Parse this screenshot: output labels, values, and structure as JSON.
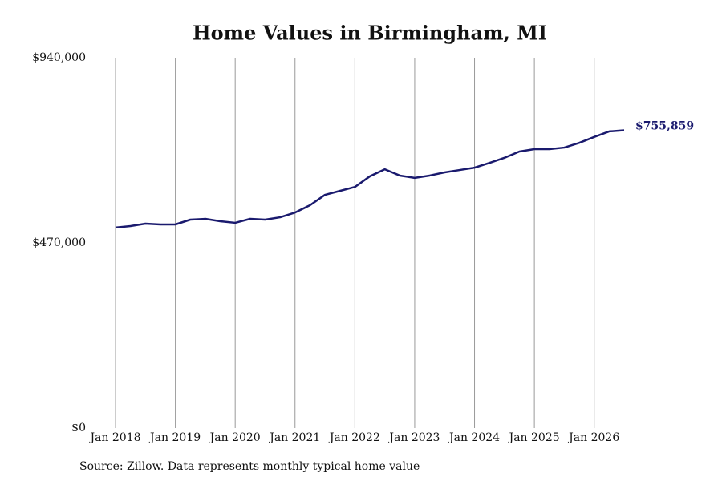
{
  "chart_data": {
    "type": "line",
    "title": "Home Values in Birmingham, MI",
    "source": "Source: Zillow. Data represents monthly typical home value",
    "x": [
      "2018-01",
      "2018-04",
      "2018-07",
      "2018-10",
      "2019-01",
      "2019-04",
      "2019-07",
      "2019-10",
      "2020-01",
      "2020-04",
      "2020-07",
      "2020-10",
      "2021-01",
      "2021-04",
      "2021-07",
      "2021-10",
      "2022-01",
      "2022-04",
      "2022-07",
      "2022-10",
      "2023-01",
      "2023-04",
      "2023-07",
      "2023-10",
      "2024-01",
      "2024-04",
      "2024-07",
      "2024-10",
      "2025-01",
      "2025-04",
      "2025-07",
      "2025-10",
      "2026-01",
      "2026-04",
      "2026-07"
    ],
    "values": [
      509000,
      512700,
      518800,
      516800,
      516800,
      529000,
      531000,
      525000,
      521000,
      531000,
      529000,
      535000,
      547000,
      565600,
      592000,
      602000,
      612000,
      639000,
      657000,
      641000,
      635000,
      641000,
      649000,
      655000,
      661000,
      673000,
      686000,
      702000,
      708000,
      708000,
      712000,
      724000,
      739000,
      753000,
      755859
    ],
    "value_labels": [
      null,
      null,
      null,
      null,
      null,
      null,
      null,
      null,
      null,
      null,
      null,
      null,
      null,
      null,
      null,
      null,
      null,
      null,
      null,
      null,
      null,
      null,
      null,
      null,
      null,
      null,
      null,
      null,
      null,
      null,
      null,
      null,
      null,
      null,
      "$755,859"
    ],
    "color": "#1a1a6e",
    "xlim": [
      "2018-01",
      "2026-07"
    ],
    "xticks": [
      {
        "value": "2018-01",
        "label": "Jan 2018"
      },
      {
        "value": "2019-01",
        "label": "Jan 2019"
      },
      {
        "value": "2020-01",
        "label": "Jan 2020"
      },
      {
        "value": "2021-01",
        "label": "Jan 2021"
      },
      {
        "value": "2022-01",
        "label": "Jan 2022"
      },
      {
        "value": "2023-01",
        "label": "Jan 2023"
      },
      {
        "value": "2024-01",
        "label": "Jan 2024"
      },
      {
        "value": "2025-01",
        "label": "Jan 2025"
      },
      {
        "value": "2026-01",
        "label": "Jan 2026"
      }
    ],
    "ylim": [
      0,
      940000
    ],
    "yticks": [
      {
        "value": 0,
        "label": "$0"
      },
      {
        "value": 470000,
        "label": "$470,000"
      },
      {
        "value": 940000,
        "label": "$940,000"
      }
    ],
    "grid": true
  }
}
